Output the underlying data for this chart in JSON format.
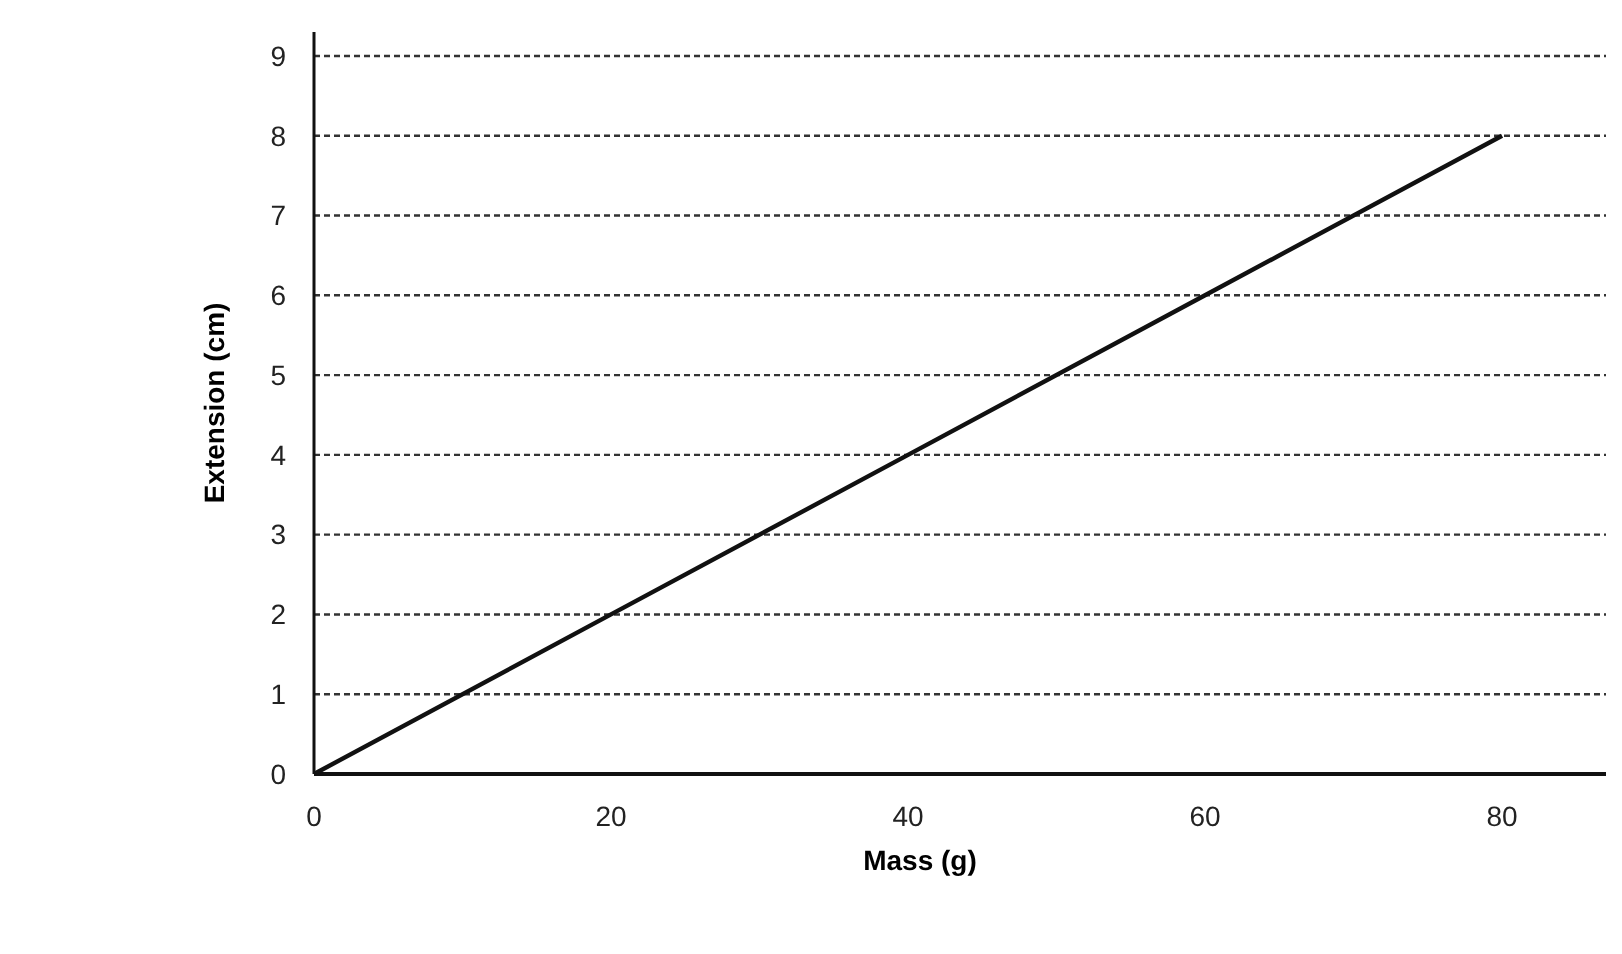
{
  "chart_data": {
    "type": "line",
    "xlabel": "Mass (g)",
    "ylabel": "Extension (cm)",
    "x": [
      0,
      20,
      40,
      60,
      80
    ],
    "series": [
      {
        "color": "#111111",
        "values": [
          0,
          2,
          4,
          6,
          8
        ]
      }
    ],
    "xlim": [
      0,
      87
    ],
    "xticks": [
      0,
      20,
      40,
      60,
      80
    ],
    "ylim": [
      0,
      9.3
    ],
    "yticks": [
      0,
      1,
      2,
      3,
      4,
      5,
      6,
      7,
      8,
      9
    ],
    "grid": "y",
    "marker": "none",
    "line_style": "solid"
  }
}
